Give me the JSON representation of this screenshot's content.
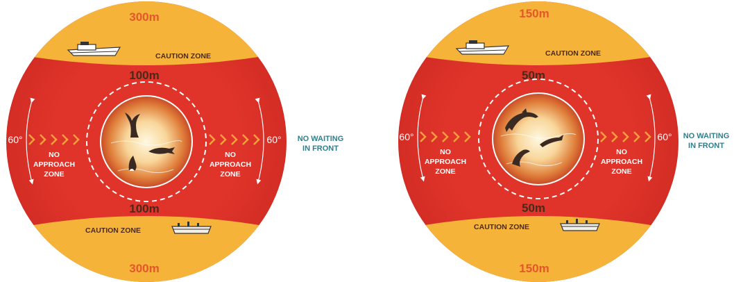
{
  "colors": {
    "red": "#e0342a",
    "red_dark": "#c92a22",
    "gold": "#f6b33a",
    "orange_text": "#e4572a",
    "chevron": "#f7a23b",
    "caption_teal": "#2f7f8b",
    "zone_text_dark": "#4a2a1a"
  },
  "diagrams": [
    {
      "top_outer": "300m",
      "top_inner": "100m",
      "bottom_inner": "100m",
      "bottom_outer": "300m",
      "caution_zone_top": "CAUTION ZONE",
      "caution_zone_bottom": "CAUTION ZONE",
      "left_angle": "60°",
      "right_angle": "60°",
      "left_zone": [
        "NO",
        "APPROACH",
        "ZONE"
      ],
      "right_zone": [
        "NO",
        "APPROACH",
        "ZONE"
      ],
      "side_caption": [
        "NO WAITING",
        "IN FRONT"
      ],
      "animals": "whales"
    },
    {
      "top_outer": "150m",
      "top_inner": "50m",
      "bottom_inner": "50m",
      "bottom_outer": "150m",
      "caution_zone_top": "CAUTION ZONE",
      "caution_zone_bottom": "CAUTION ZONE",
      "left_angle": "60°",
      "right_angle": "60°",
      "left_zone": [
        "NO",
        "APPROACH",
        "ZONE"
      ],
      "right_zone": [
        "NO",
        "APPROACH",
        "ZONE"
      ],
      "side_caption": [
        "NO WAITING",
        "IN FRONT"
      ],
      "animals": "dolphins"
    }
  ],
  "icons": [
    "boat-icon",
    "ship-icon",
    "whale-tail-icon",
    "whale-icon",
    "dolphin-icon",
    "chevron-icon",
    "arrow-icon"
  ]
}
